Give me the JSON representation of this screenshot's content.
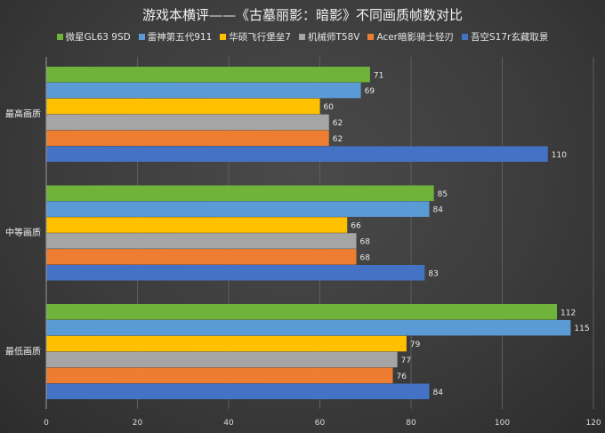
{
  "chart_data": {
    "type": "bar",
    "orientation": "horizontal",
    "title": "游戏本横评——《古墓丽影：暗影》不同画质帧数对比",
    "categories": [
      "最高画质",
      "中等画质",
      "最低画质"
    ],
    "series": [
      {
        "name": "微星GL63 9SD",
        "color": "#70b33a",
        "values": [
          71,
          85,
          112
        ]
      },
      {
        "name": "雷神第五代911",
        "color": "#5b9bd5",
        "values": [
          69,
          84,
          115
        ]
      },
      {
        "name": "华硕飞行堡垒7",
        "color": "#ffc000",
        "values": [
          60,
          66,
          79
        ]
      },
      {
        "name": "机械师T58V",
        "color": "#a5a5a5",
        "values": [
          62,
          68,
          77
        ]
      },
      {
        "name": "Acer暗影骑士轻刃",
        "color": "#ed7d31",
        "values": [
          62,
          68,
          76
        ]
      },
      {
        "name": "吾空S17r玄藏取景",
        "color": "#4472c4",
        "values": [
          110,
          83,
          84
        ]
      }
    ],
    "xlim": [
      0,
      120
    ],
    "xticks": [
      0,
      20,
      40,
      60,
      80,
      100,
      120
    ],
    "grid": true,
    "legend_position": "top"
  }
}
